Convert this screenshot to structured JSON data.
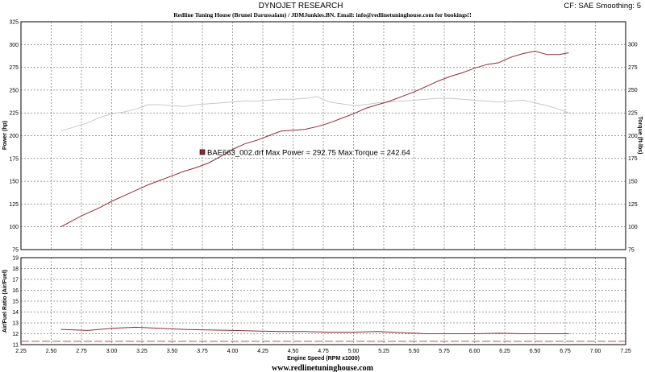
{
  "header": {
    "title": "DYNOJET RESEARCH",
    "subtitle": "Redline Tuning House (Brunei Darussalam) / JDMJunkies.BN. Email: info@redlinetuninghouse.com for bookings!!",
    "cf": "CF: SAE  Smoothing: 5"
  },
  "footer": {
    "url": "www.redlinetuninghouse.com"
  },
  "colors": {
    "power": "#8b2c3a",
    "torque": "#c8c8c8",
    "afr": "#8b2c3a",
    "afr_ref": "#c0303a",
    "grid": "#404040",
    "marker": "#a02030"
  },
  "chart_data": [
    {
      "id": "main",
      "type": "line",
      "xlabel": "",
      "ylabel": "Power (hp)",
      "ylabel_right": "Torque (ft-lbs)",
      "xlim": [
        2.25,
        7.25
      ],
      "ylim": [
        75,
        325
      ],
      "ylim_right": [
        75,
        300
      ],
      "yticks": [
        "75",
        "100",
        "125",
        "150",
        "175",
        "200",
        "225",
        "250",
        "275",
        "300",
        "325"
      ],
      "yticks_right": [
        "75",
        "100",
        "125",
        "150",
        "175",
        "200",
        "225",
        "250",
        "275",
        "300"
      ],
      "grid": true,
      "annotation": {
        "text": "BAE663_002.drf Max Power = 292.75     Max Torque = 242.64",
        "x": 3.75,
        "y": 182
      },
      "series": [
        {
          "key": "power",
          "x": [
            2.58,
            2.75,
            2.9,
            3.0,
            3.1,
            3.2,
            3.3,
            3.4,
            3.5,
            3.6,
            3.7,
            3.8,
            3.9,
            4.0,
            4.1,
            4.2,
            4.3,
            4.4,
            4.5,
            4.6,
            4.7,
            4.8,
            4.9,
            5.0,
            5.1,
            5.2,
            5.3,
            5.4,
            5.5,
            5.6,
            5.7,
            5.8,
            5.9,
            6.0,
            6.1,
            6.2,
            6.3,
            6.4,
            6.5,
            6.6,
            6.7,
            6.78
          ],
          "values": [
            100,
            112,
            121,
            128,
            134,
            140,
            146,
            151,
            156,
            161,
            165,
            170,
            177,
            185,
            191,
            195,
            200,
            205,
            206,
            207,
            210,
            214,
            219,
            224,
            230,
            234,
            238,
            243,
            248,
            254,
            260,
            265,
            269,
            274,
            278,
            280,
            286,
            290,
            292.75,
            289,
            289,
            291
          ]
        },
        {
          "key": "torque",
          "x": [
            2.58,
            2.7,
            2.8,
            2.9,
            3.0,
            3.1,
            3.2,
            3.3,
            3.4,
            3.5,
            3.6,
            3.7,
            3.8,
            3.9,
            4.0,
            4.1,
            4.2,
            4.3,
            4.4,
            4.5,
            4.6,
            4.7,
            4.8,
            4.9,
            5.0,
            5.1,
            5.2,
            5.3,
            5.4,
            5.5,
            5.6,
            5.7,
            5.8,
            5.9,
            6.0,
            6.1,
            6.2,
            6.3,
            6.4,
            6.5,
            6.6,
            6.7,
            6.78
          ],
          "values": [
            205,
            210,
            214,
            220,
            224,
            226,
            229,
            234,
            234,
            233,
            232,
            234,
            235,
            236,
            237,
            238,
            238,
            239,
            240,
            240,
            241,
            242.64,
            237,
            235,
            233,
            234,
            236,
            237,
            238,
            239,
            240,
            241,
            241,
            240,
            239,
            238,
            237,
            238,
            239,
            236,
            233,
            229,
            225
          ]
        }
      ]
    },
    {
      "id": "afr",
      "type": "line",
      "xlabel": "Engine Speed (RPM x1000)",
      "ylabel": "Air/Fuel Ratio (Air/Fuel)",
      "xlim": [
        2.25,
        7.25
      ],
      "ylim": [
        11,
        19
      ],
      "xticks": [
        "2.25",
        "2.50",
        "2.75",
        "3.00",
        "3.25",
        "3.50",
        "3.75",
        "4.00",
        "4.25",
        "4.50",
        "4.75",
        "5.00",
        "5.25",
        "5.50",
        "5.75",
        "6.00",
        "6.25",
        "6.50",
        "6.75",
        "7.00",
        "7.25"
      ],
      "yticks": [
        "11",
        "12",
        "13",
        "14",
        "15",
        "16",
        "17",
        "18",
        "19"
      ],
      "grid": true,
      "reference_line": 11.3,
      "series": [
        {
          "key": "afr",
          "x": [
            2.58,
            2.8,
            3.0,
            3.2,
            3.4,
            3.6,
            3.8,
            4.0,
            4.2,
            4.4,
            4.6,
            4.8,
            5.0,
            5.2,
            5.4,
            5.6,
            5.8,
            6.0,
            6.2,
            6.4,
            6.6,
            6.78
          ],
          "values": [
            12.4,
            12.3,
            12.5,
            12.6,
            12.5,
            12.4,
            12.35,
            12.3,
            12.25,
            12.2,
            12.2,
            12.15,
            12.15,
            12.2,
            12.1,
            12.0,
            12.0,
            12.0,
            12.05,
            12.0,
            12.0,
            12.0
          ]
        }
      ]
    }
  ]
}
